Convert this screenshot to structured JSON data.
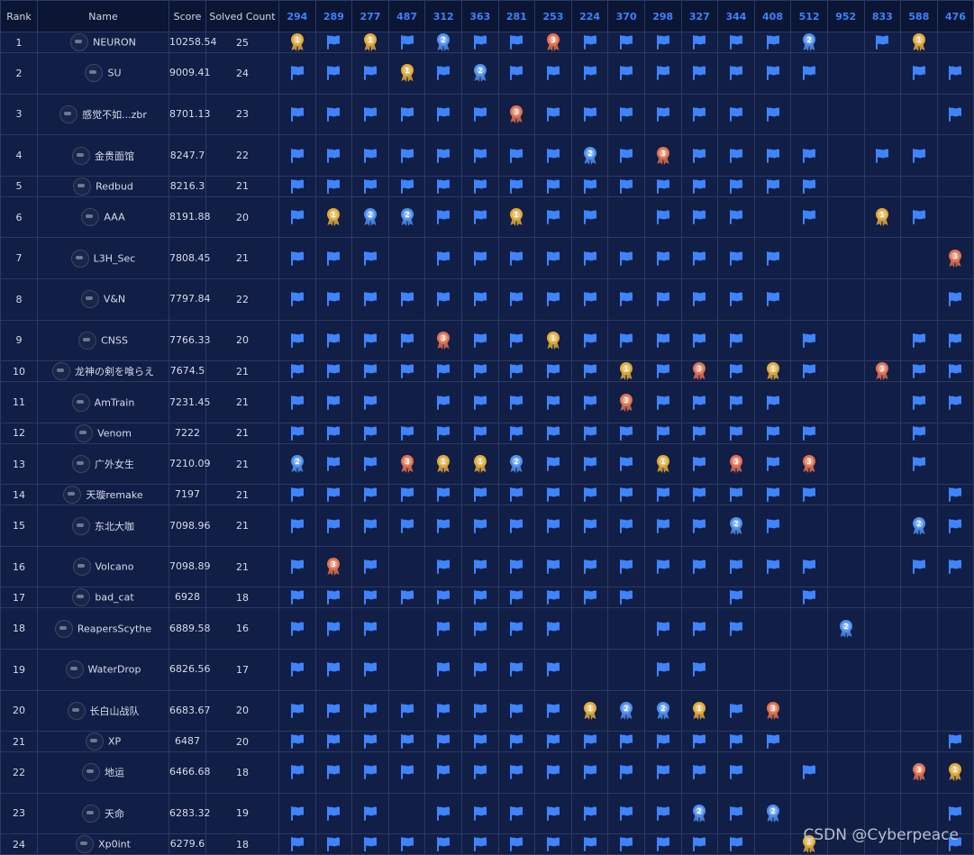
{
  "headers": {
    "rank": "Rank",
    "name": "Name",
    "score": "Score",
    "solved": "Solved Count"
  },
  "challenges": [
    "294",
    "289",
    "277",
    "487",
    "312",
    "363",
    "281",
    "253",
    "224",
    "370",
    "298",
    "327",
    "344",
    "408",
    "512",
    "952",
    "833",
    "588",
    "476"
  ],
  "mark_legend": {
    "F": "solved flag",
    "G": "first blood (gold)",
    "S": "second blood (silver)",
    "B": "third blood (bronze)",
    "": "unsolved"
  },
  "rows": [
    {
      "rank": "1",
      "name": "NEURON",
      "score": "10258.54",
      "solved": "25",
      "marks": [
        "G",
        "F",
        "G",
        "F",
        "S",
        "F",
        "F",
        "B",
        "F",
        "F",
        "F",
        "F",
        "F",
        "F",
        "S",
        "",
        "F",
        "G",
        ""
      ]
    },
    {
      "rank": "2",
      "name": "SU",
      "score": "9009.41",
      "solved": "24",
      "marks": [
        "F",
        "F",
        "F",
        "G",
        "F",
        "S",
        "F",
        "F",
        "F",
        "F",
        "F",
        "F",
        "F",
        "F",
        "F",
        "",
        "",
        "F",
        "F"
      ]
    },
    {
      "rank": "3",
      "name": "感觉不如...zbr",
      "score": "8701.13",
      "solved": "23",
      "marks": [
        "F",
        "F",
        "F",
        "F",
        "F",
        "F",
        "B",
        "F",
        "F",
        "F",
        "F",
        "F",
        "F",
        "F",
        "",
        "",
        "",
        "",
        "F"
      ]
    },
    {
      "rank": "4",
      "name": "金贵面馆",
      "score": "8247.7",
      "solved": "22",
      "marks": [
        "F",
        "F",
        "F",
        "F",
        "F",
        "F",
        "F",
        "F",
        "S",
        "F",
        "B",
        "F",
        "F",
        "F",
        "F",
        "",
        "F",
        "F",
        ""
      ]
    },
    {
      "rank": "5",
      "name": "Redbud",
      "score": "8216.3",
      "solved": "21",
      "marks": [
        "F",
        "F",
        "F",
        "F",
        "F",
        "F",
        "F",
        "F",
        "F",
        "F",
        "F",
        "F",
        "F",
        "F",
        "F",
        "",
        "",
        "",
        ""
      ]
    },
    {
      "rank": "6",
      "name": "AAA",
      "score": "8191.88",
      "solved": "20",
      "marks": [
        "F",
        "G",
        "S",
        "S",
        "F",
        "F",
        "G",
        "F",
        "F",
        "",
        "F",
        "F",
        "F",
        "",
        "F",
        "",
        "G",
        "F",
        ""
      ]
    },
    {
      "rank": "7",
      "name": "L3H_Sec",
      "score": "7808.45",
      "solved": "21",
      "marks": [
        "F",
        "F",
        "F",
        "",
        "F",
        "F",
        "F",
        "F",
        "F",
        "F",
        "F",
        "F",
        "F",
        "F",
        "",
        "",
        "",
        "",
        "B"
      ]
    },
    {
      "rank": "8",
      "name": "V&N",
      "score": "7797.84",
      "solved": "22",
      "marks": [
        "F",
        "F",
        "F",
        "F",
        "F",
        "F",
        "F",
        "F",
        "F",
        "F",
        "F",
        "F",
        "F",
        "F",
        "",
        "",
        "",
        "",
        "F"
      ]
    },
    {
      "rank": "9",
      "name": "CNSS",
      "score": "7766.33",
      "solved": "20",
      "marks": [
        "F",
        "F",
        "F",
        "F",
        "B",
        "F",
        "F",
        "G",
        "F",
        "F",
        "F",
        "F",
        "F",
        "",
        "F",
        "",
        "",
        "F",
        "F"
      ]
    },
    {
      "rank": "10",
      "name": "龙神の剣を喰らえ",
      "score": "7674.5",
      "solved": "21",
      "marks": [
        "F",
        "F",
        "F",
        "F",
        "F",
        "F",
        "F",
        "F",
        "F",
        "G",
        "F",
        "B",
        "F",
        "G",
        "F",
        "",
        "B",
        "F",
        "F"
      ]
    },
    {
      "rank": "11",
      "name": "AmTrain",
      "score": "7231.45",
      "solved": "21",
      "marks": [
        "F",
        "F",
        "F",
        "",
        "F",
        "F",
        "F",
        "F",
        "F",
        "B",
        "F",
        "F",
        "F",
        "F",
        "",
        "",
        "",
        "F",
        "F"
      ]
    },
    {
      "rank": "12",
      "name": "Venom",
      "score": "7222",
      "solved": "21",
      "marks": [
        "F",
        "F",
        "F",
        "F",
        "F",
        "F",
        "F",
        "F",
        "F",
        "F",
        "F",
        "F",
        "F",
        "F",
        "F",
        "",
        "",
        "F",
        ""
      ]
    },
    {
      "rank": "13",
      "name": "广外女生",
      "score": "7210.09",
      "solved": "21",
      "marks": [
        "S",
        "F",
        "F",
        "B",
        "G",
        "G",
        "S",
        "F",
        "F",
        "F",
        "G",
        "F",
        "B",
        "F",
        "B",
        "",
        "",
        "F",
        ""
      ]
    },
    {
      "rank": "14",
      "name": "天璇remake",
      "score": "7197",
      "solved": "21",
      "marks": [
        "F",
        "F",
        "F",
        "F",
        "F",
        "F",
        "F",
        "F",
        "F",
        "F",
        "F",
        "F",
        "F",
        "F",
        "F",
        "",
        "",
        "",
        "F"
      ]
    },
    {
      "rank": "15",
      "name": "东北大咖",
      "score": "7098.96",
      "solved": "21",
      "marks": [
        "F",
        "F",
        "F",
        "F",
        "F",
        "F",
        "F",
        "F",
        "F",
        "F",
        "F",
        "F",
        "S",
        "F",
        "",
        "",
        "",
        "S",
        "F"
      ]
    },
    {
      "rank": "16",
      "name": "Volcano",
      "score": "7098.89",
      "solved": "21",
      "marks": [
        "F",
        "B",
        "F",
        "",
        "F",
        "F",
        "F",
        "F",
        "F",
        "F",
        "F",
        "F",
        "F",
        "F",
        "F",
        "",
        "",
        "F",
        "F"
      ]
    },
    {
      "rank": "17",
      "name": "bad_cat",
      "score": "6928",
      "solved": "18",
      "marks": [
        "F",
        "F",
        "F",
        "F",
        "F",
        "F",
        "F",
        "F",
        "F",
        "F",
        "",
        "",
        "F",
        "",
        "F",
        "",
        "",
        "",
        ""
      ]
    },
    {
      "rank": "18",
      "name": "ReapersScythe",
      "score": "6889.58",
      "solved": "16",
      "marks": [
        "F",
        "F",
        "F",
        "",
        "F",
        "F",
        "F",
        "F",
        "",
        "",
        "F",
        "F",
        "F",
        "",
        "",
        "S",
        "",
        "",
        ""
      ]
    },
    {
      "rank": "19",
      "name": "WaterDrop",
      "score": "6826.56",
      "solved": "17",
      "marks": [
        "F",
        "F",
        "F",
        "",
        "F",
        "F",
        "F",
        "F",
        "",
        "",
        "F",
        "F",
        "",
        "",
        "",
        "",
        "",
        "",
        ""
      ]
    },
    {
      "rank": "20",
      "name": "长白山战队",
      "score": "6683.67",
      "solved": "20",
      "marks": [
        "F",
        "F",
        "F",
        "F",
        "F",
        "F",
        "F",
        "F",
        "G",
        "S",
        "S",
        "G",
        "F",
        "B",
        "",
        "",
        "",
        "",
        ""
      ]
    },
    {
      "rank": "21",
      "name": "XP",
      "score": "6487",
      "solved": "20",
      "marks": [
        "F",
        "F",
        "F",
        "F",
        "F",
        "F",
        "F",
        "F",
        "F",
        "F",
        "F",
        "F",
        "F",
        "F",
        "",
        "",
        "",
        "",
        "F"
      ]
    },
    {
      "rank": "22",
      "name": "地运",
      "score": "6466.68",
      "solved": "18",
      "marks": [
        "F",
        "F",
        "F",
        "F",
        "F",
        "F",
        "F",
        "F",
        "F",
        "F",
        "F",
        "F",
        "F",
        "",
        "F",
        "",
        "",
        "B",
        "G"
      ]
    },
    {
      "rank": "23",
      "name": "天命",
      "score": "6283.32",
      "solved": "19",
      "marks": [
        "F",
        "F",
        "F",
        "",
        "F",
        "F",
        "F",
        "F",
        "F",
        "F",
        "F",
        "S",
        "F",
        "S",
        "",
        "",
        "",
        "",
        "F"
      ]
    },
    {
      "rank": "24",
      "name": "Xp0int",
      "score": "6279.6",
      "solved": "18",
      "marks": [
        "F",
        "F",
        "F",
        "F",
        "F",
        "F",
        "F",
        "F",
        "F",
        "F",
        "F",
        "F",
        "F",
        "",
        "G",
        "",
        "",
        "",
        "F"
      ]
    }
  ],
  "row_height_units": [
    1,
    2,
    2,
    2,
    1,
    2,
    2,
    2,
    2,
    1,
    2,
    1,
    2,
    1,
    2,
    2,
    1,
    2,
    2,
    2,
    1,
    2,
    2,
    1
  ],
  "colors": {
    "background": "#0e1a3d",
    "cell": "#111e45",
    "grid": "#2a3a66",
    "flag": "#3f84ff",
    "gold": "#e0a93a",
    "silver": "#4e8ff0",
    "bronze": "#e0704f",
    "challenge_header": "#3c82ff"
  },
  "watermark": "CSDN @Cyberpeace"
}
